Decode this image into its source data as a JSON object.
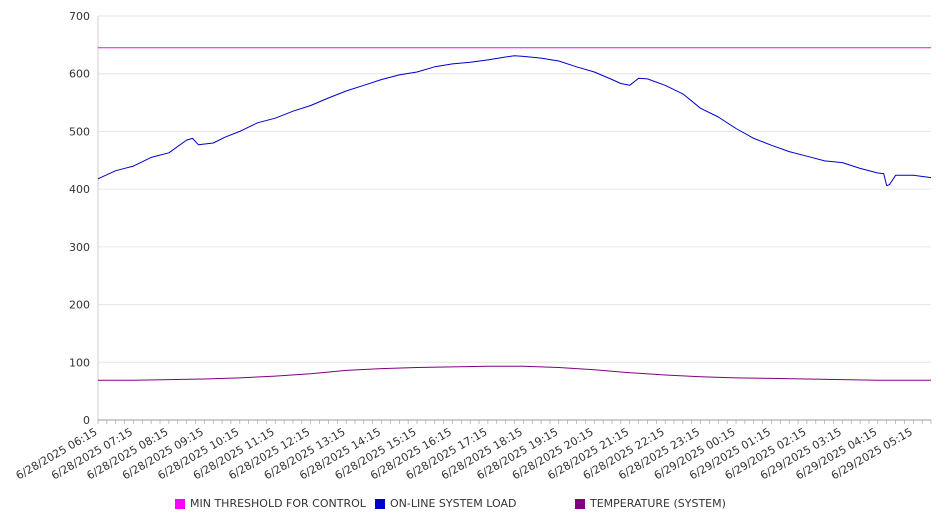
{
  "chart_data": {
    "type": "line",
    "title": "",
    "xlabel": "",
    "ylabel": "",
    "ylim": [
      0,
      700
    ],
    "yticks": [
      0,
      100,
      200,
      300,
      400,
      500,
      600,
      700
    ],
    "grid": true,
    "legend_position": "bottom",
    "x_start": "6/28/2025 06:15",
    "x_end": "6/29/2025 05:45",
    "x_tick_labels": [
      "6/28/2025 06:15",
      "6/28/2025 07:15",
      "6/28/2025 08:15",
      "6/28/2025 09:15",
      "6/28/2025 10:15",
      "6/28/2025 11:15",
      "6/28/2025 12:15",
      "6/28/2025 13:15",
      "6/28/2025 14:15",
      "6/28/2025 15:15",
      "6/28/2025 16:15",
      "6/28/2025 17:15",
      "6/28/2025 18:15",
      "6/28/2025 19:15",
      "6/28/2025 20:15",
      "6/28/2025 21:15",
      "6/28/2025 22:15",
      "6/28/2025 23:15",
      "6/29/2025 00:15",
      "6/29/2025 01:15",
      "6/29/2025 02:15",
      "6/29/2025 03:15",
      "6/29/2025 04:15",
      "6/29/2025 05:15"
    ],
    "series": [
      {
        "name": "MIN THRESHOLD FOR CONTROL",
        "color": "#ff00ff",
        "points": [
          [
            "6/28/2025 06:15",
            645
          ],
          [
            "6/29/2025 05:45",
            645
          ]
        ]
      },
      {
        "name": "ON-LINE SYSTEM LOAD",
        "color": "#0000cc",
        "points": [
          [
            "6/28/2025 06:15",
            418
          ],
          [
            "6/28/2025 06:45",
            432
          ],
          [
            "6/28/2025 07:15",
            440
          ],
          [
            "6/28/2025 07:45",
            455
          ],
          [
            "6/28/2025 08:15",
            463
          ],
          [
            "6/28/2025 08:45",
            485
          ],
          [
            "6/28/2025 08:55",
            488
          ],
          [
            "6/28/2025 09:05",
            477
          ],
          [
            "6/28/2025 09:30",
            480
          ],
          [
            "6/28/2025 09:50",
            490
          ],
          [
            "6/28/2025 10:15",
            500
          ],
          [
            "6/28/2025 10:45",
            515
          ],
          [
            "6/28/2025 11:15",
            523
          ],
          [
            "6/28/2025 11:45",
            535
          ],
          [
            "6/28/2025 12:15",
            545
          ],
          [
            "6/28/2025 12:45",
            558
          ],
          [
            "6/28/2025 13:15",
            570
          ],
          [
            "6/28/2025 13:45",
            580
          ],
          [
            "6/28/2025 14:15",
            590
          ],
          [
            "6/28/2025 14:45",
            598
          ],
          [
            "6/28/2025 15:15",
            603
          ],
          [
            "6/28/2025 15:45",
            612
          ],
          [
            "6/28/2025 16:15",
            617
          ],
          [
            "6/28/2025 16:45",
            620
          ],
          [
            "6/28/2025 17:15",
            624
          ],
          [
            "6/28/2025 17:45",
            629
          ],
          [
            "6/28/2025 18:00",
            631
          ],
          [
            "6/28/2025 18:15",
            630
          ],
          [
            "6/28/2025 18:45",
            627
          ],
          [
            "6/28/2025 19:15",
            622
          ],
          [
            "6/28/2025 19:45",
            612
          ],
          [
            "6/28/2025 20:15",
            603
          ],
          [
            "6/28/2025 20:45",
            590
          ],
          [
            "6/28/2025 21:00",
            583
          ],
          [
            "6/28/2025 21:15",
            580
          ],
          [
            "6/28/2025 21:30",
            592
          ],
          [
            "6/28/2025 21:45",
            591
          ],
          [
            "6/28/2025 22:15",
            580
          ],
          [
            "6/28/2025 22:45",
            565
          ],
          [
            "6/28/2025 23:15",
            540
          ],
          [
            "6/28/2025 23:45",
            525
          ],
          [
            "6/29/2025 00:15",
            505
          ],
          [
            "6/29/2025 00:45",
            488
          ],
          [
            "6/29/2025 01:15",
            476
          ],
          [
            "6/29/2025 01:45",
            465
          ],
          [
            "6/29/2025 02:15",
            457
          ],
          [
            "6/29/2025 02:45",
            449
          ],
          [
            "6/29/2025 03:15",
            446
          ],
          [
            "6/29/2025 03:45",
            436
          ],
          [
            "6/29/2025 04:15",
            428
          ],
          [
            "6/29/2025 04:25",
            427
          ],
          [
            "6/29/2025 04:30",
            406
          ],
          [
            "6/29/2025 04:35",
            408
          ],
          [
            "6/29/2025 04:45",
            424
          ],
          [
            "6/29/2025 05:15",
            424
          ],
          [
            "6/29/2025 05:45",
            420
          ]
        ]
      },
      {
        "name": "TEMPERATURE (SYSTEM)",
        "color": "#800080",
        "points": [
          [
            "6/28/2025 06:15",
            69
          ],
          [
            "6/28/2025 07:15",
            69
          ],
          [
            "6/28/2025 08:15",
            70
          ],
          [
            "6/28/2025 09:15",
            71
          ],
          [
            "6/28/2025 10:15",
            73
          ],
          [
            "6/28/2025 11:15",
            76
          ],
          [
            "6/28/2025 12:15",
            80
          ],
          [
            "6/28/2025 13:15",
            86
          ],
          [
            "6/28/2025 14:15",
            89
          ],
          [
            "6/28/2025 15:15",
            91
          ],
          [
            "6/28/2025 16:15",
            92
          ],
          [
            "6/28/2025 17:15",
            93
          ],
          [
            "6/28/2025 18:15",
            93
          ],
          [
            "6/28/2025 19:15",
            91
          ],
          [
            "6/28/2025 20:15",
            87
          ],
          [
            "6/28/2025 21:15",
            82
          ],
          [
            "6/28/2025 22:15",
            78
          ],
          [
            "6/28/2025 23:15",
            75
          ],
          [
            "6/29/2025 00:15",
            73
          ],
          [
            "6/29/2025 01:15",
            72
          ],
          [
            "6/29/2025 02:15",
            71
          ],
          [
            "6/29/2025 03:15",
            70
          ],
          [
            "6/29/2025 04:15",
            69
          ],
          [
            "6/29/2025 05:15",
            69
          ],
          [
            "6/29/2025 05:45",
            69
          ]
        ]
      }
    ]
  }
}
